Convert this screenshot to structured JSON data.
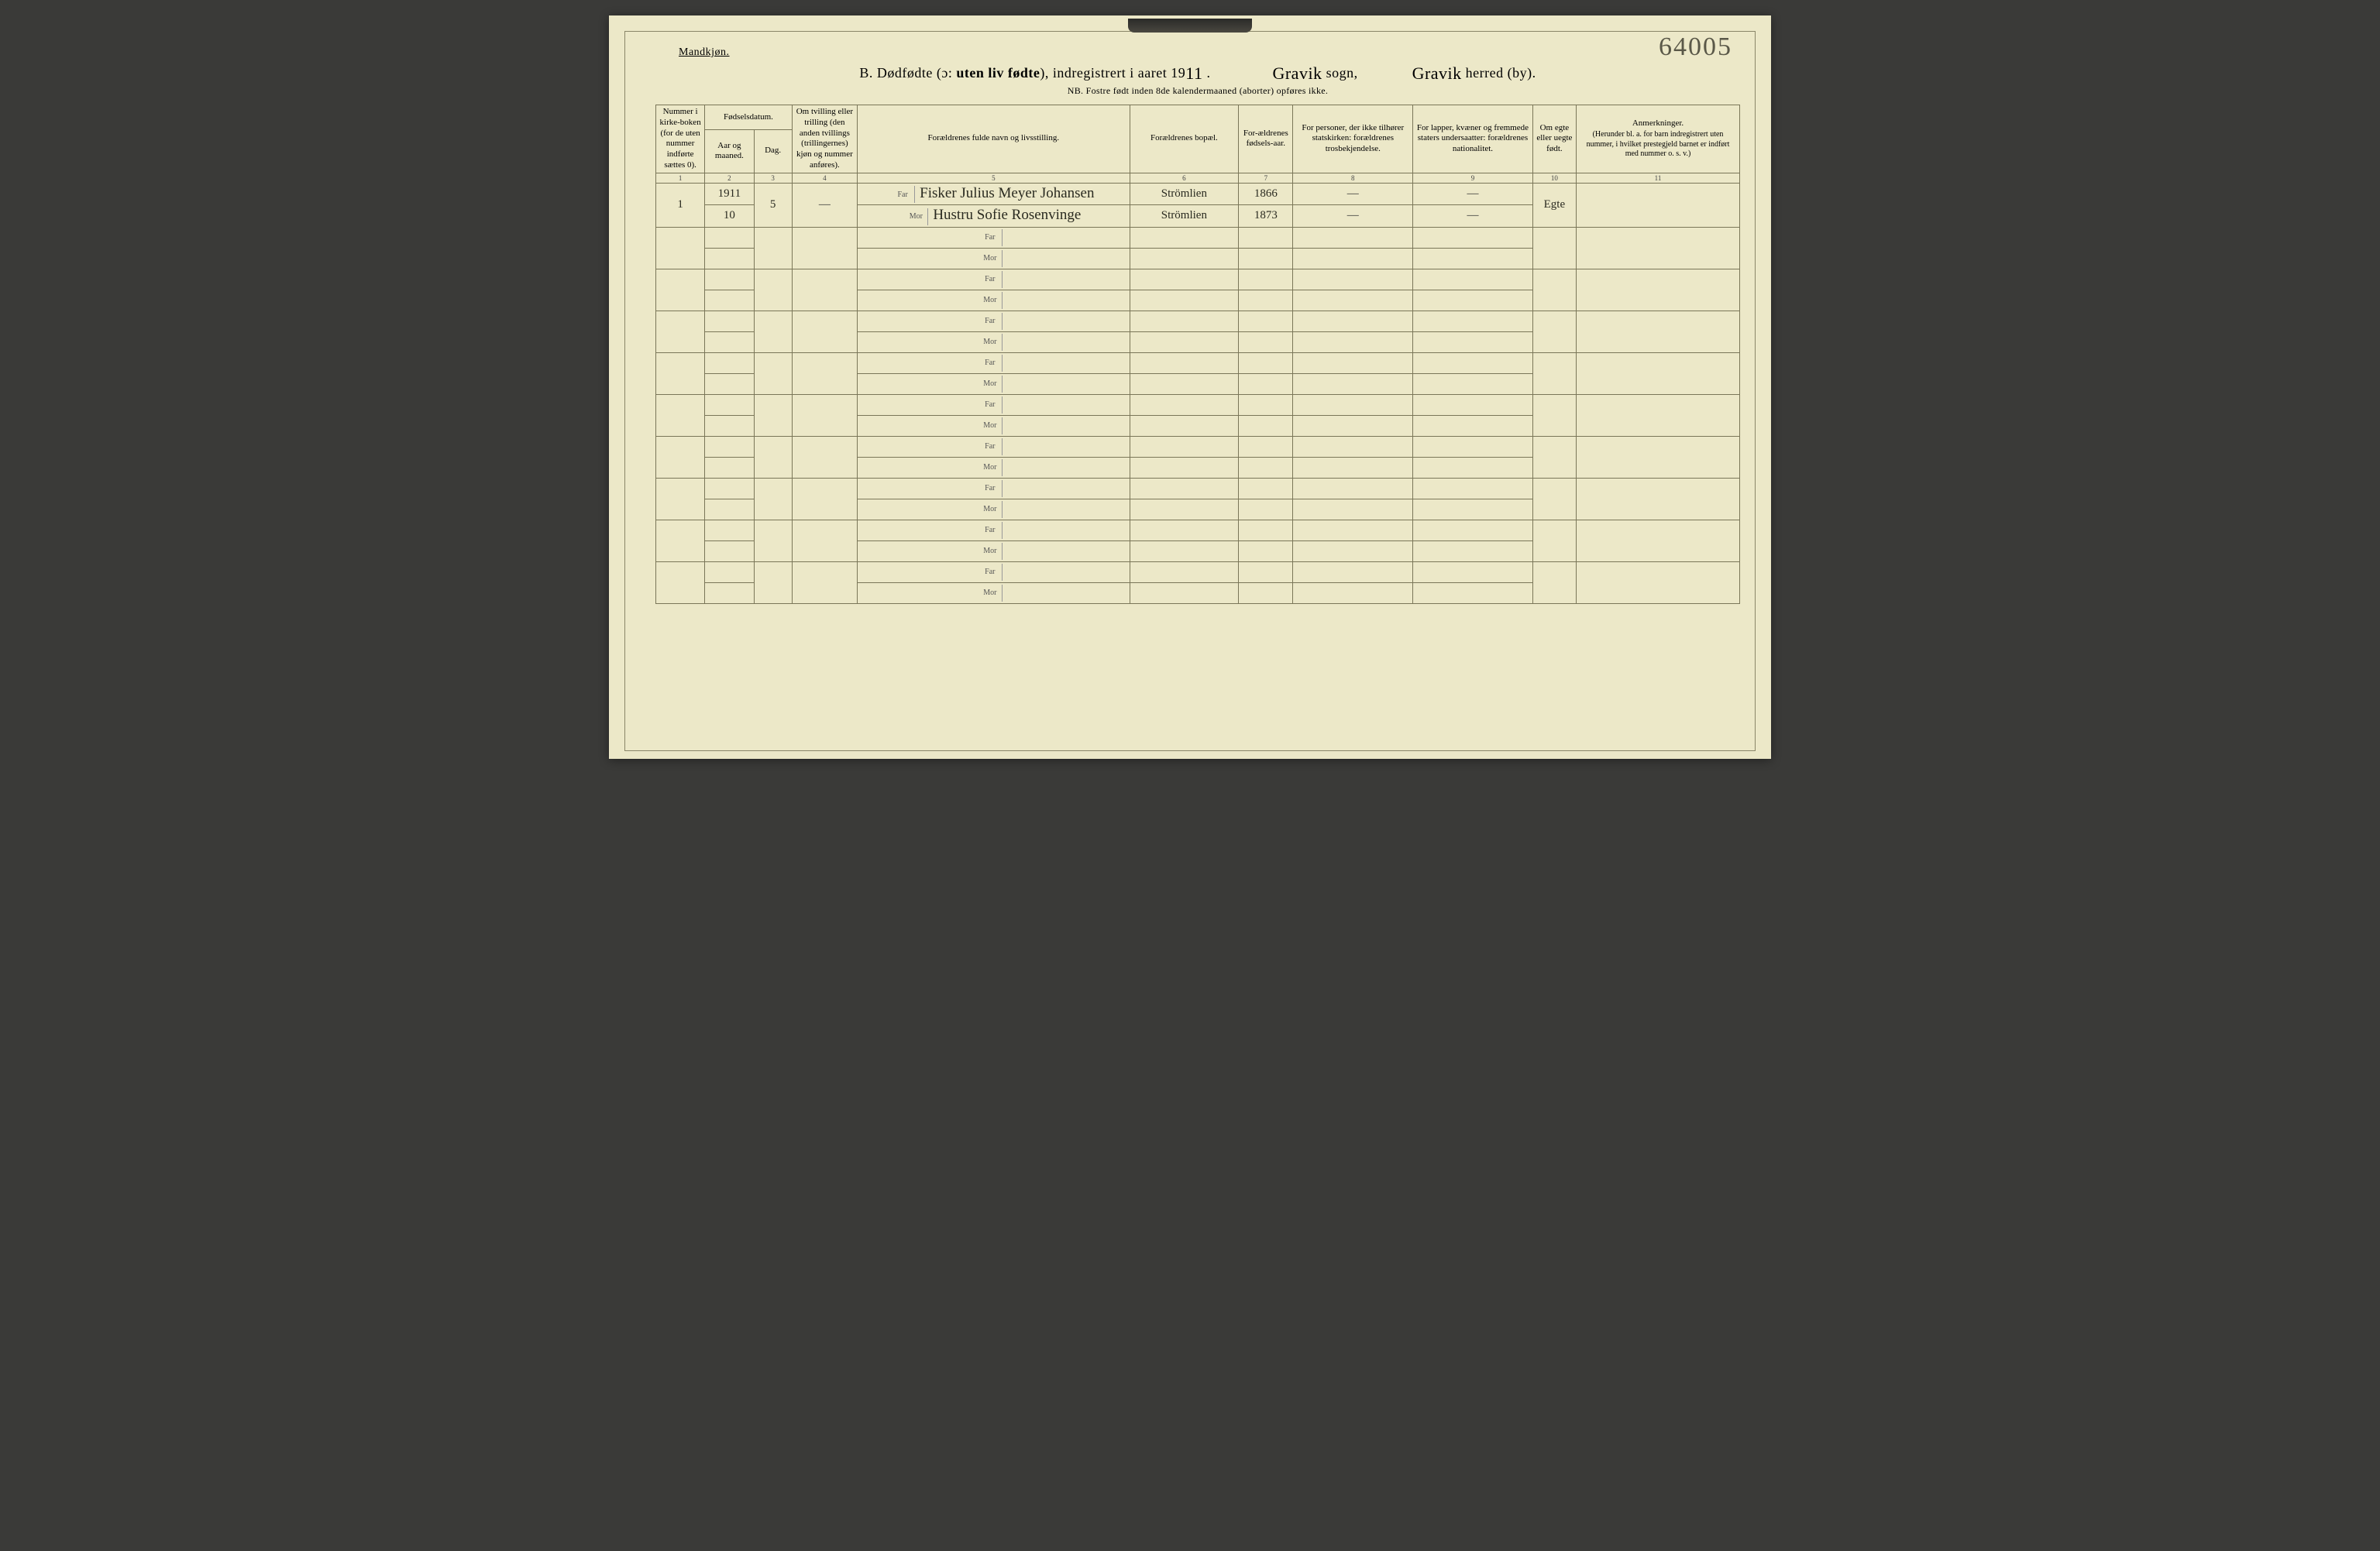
{
  "corner_number": "64005",
  "gender_label": "Mandkjøn.",
  "title": {
    "prefix": "B.   Dødfødte (ɔ: ",
    "bold": "uten liv fødte",
    "mid": "), indregistrert i aaret 19",
    "year_digit": "11",
    "after_year": " .",
    "sogn_hand": "Gravik",
    "sogn_suffix": " sogn,",
    "herred_hand": "Gravik",
    "herred_suffix": " herred (by)."
  },
  "nb_line": "NB.  Fostre født inden 8de kalendermaaned (aborter) opføres ikke.",
  "headers": {
    "c1": "Nummer i kirke-boken (for de uten nummer indførte sættes 0).",
    "c2_group": "Fødselsdatum.",
    "c2": "Aar og maaned.",
    "c3": "Dag.",
    "c4": "Om tvilling eller trilling (den anden tvillings (trillingernes) kjøn og nummer anføres).",
    "c5": "Forældrenes fulde navn og livsstilling.",
    "c6": "Forældrenes bopæl.",
    "c7": "For-ældrenes fødsels-aar.",
    "c8": "For personer, der ikke tilhører statskirken: forældrenes trosbekjendelse.",
    "c9": "For lapper, kvæner og fremmede staters undersaatter: forældrenes nationalitet.",
    "c10": "Om egte eller uegte født.",
    "c11_title": "Anmerkninger.",
    "c11_sub": "(Herunder bl. a. for barn indregistrert uten nummer, i hvilket prestegjeld barnet er indført med nummer o. s. v.)"
  },
  "colnums": [
    "1",
    "2",
    "3",
    "4",
    "5",
    "6",
    "7",
    "8",
    "9",
    "10",
    "11"
  ],
  "entry": {
    "num": "1",
    "year_month": "1911",
    "month": "10",
    "day": "5",
    "twin": "—",
    "far_label": "Far",
    "mor_label": "Mor",
    "far_text": "Fisker Julius Meyer Johansen",
    "mor_text": "Hustru Sofie Rosenvinge",
    "far_place": "Strömlien",
    "mor_place": "Strömlien",
    "far_year": "1866",
    "mor_year": "1873",
    "c8_far": "—",
    "c8_mor": "—",
    "c9_far": "—",
    "c9_mor": "—",
    "egte": "Egte"
  }
}
